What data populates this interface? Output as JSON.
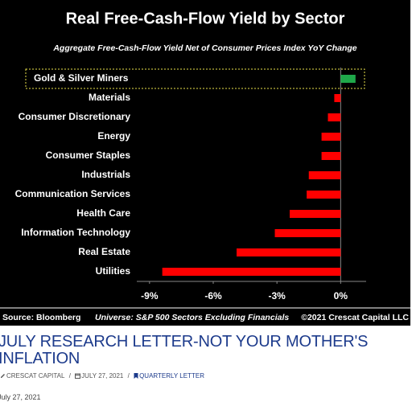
{
  "chart_data": {
    "type": "hbar",
    "title": "Real Free-Cash-Flow Yield by Sector",
    "subtitle": "Aggregate Free-Cash-Flow Yield Net of Consumer Prices Index YoY Change",
    "categories": [
      "Gold & Silver Miners",
      "Materials",
      "Consumer Discretionary",
      "Energy",
      "Consumer Staples",
      "Industrials",
      "Communication Services",
      "Health Care",
      "Information Technology",
      "Real Estate",
      "Utilities"
    ],
    "values": [
      0.7,
      -0.3,
      -0.6,
      -0.9,
      -0.9,
      -1.5,
      -1.6,
      -2.4,
      -3.1,
      -4.9,
      -8.4
    ],
    "colors": [
      "#1fa84a",
      "#ff0000",
      "#ff0000",
      "#ff0000",
      "#ff0000",
      "#ff0000",
      "#ff0000",
      "#ff0000",
      "#ff0000",
      "#ff0000",
      "#ff0000"
    ],
    "highlight_index": 0,
    "xlim": [
      -9.6,
      1.2
    ],
    "xticks": [
      {
        "value": -9,
        "label": "-9%"
      },
      {
        "value": -6,
        "label": "-6%"
      },
      {
        "value": -3,
        "label": "-3%"
      },
      {
        "value": 0,
        "label": "0%"
      }
    ],
    "source": "Source: Bloomberg",
    "universe": "Universe: S&P 500 Sectors Excluding Financials",
    "copyright": "©2021 Crescat Capital LLC"
  },
  "article": {
    "title": "JULY RESEARCH LETTER-NOT YOUR MOTHER'S INFLATION",
    "author": "CRESCAT CAPITAL",
    "separator": "/",
    "date": "JULY 27, 2021",
    "category": "QUARTERLY LETTER",
    "published": "July 27, 2021"
  }
}
